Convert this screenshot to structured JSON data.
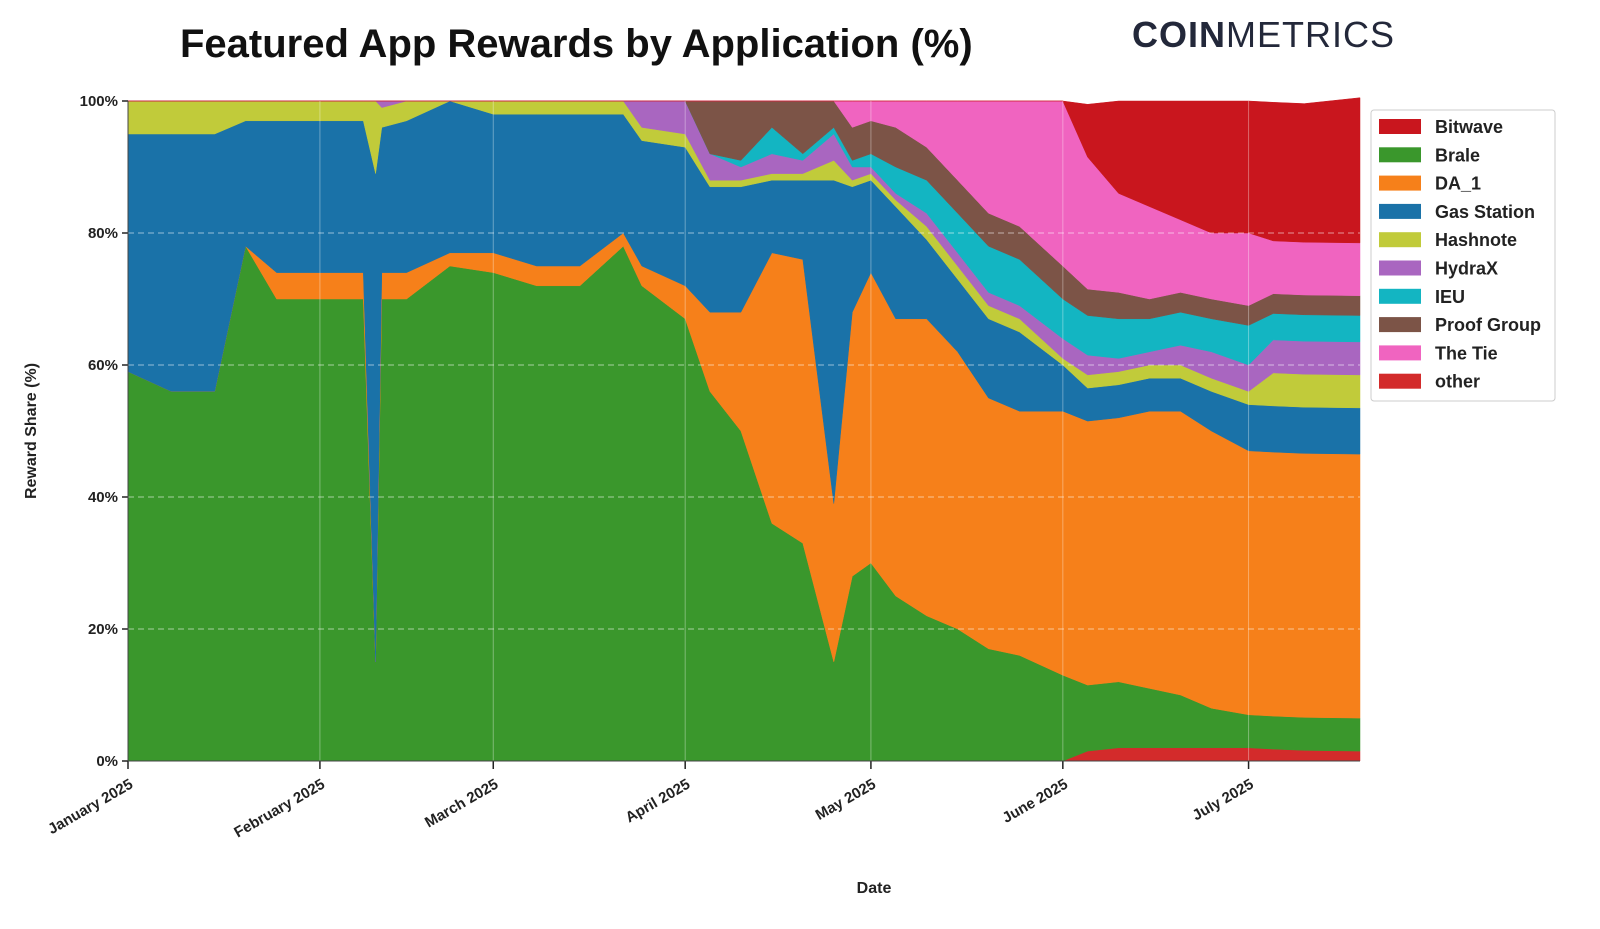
{
  "chart_data": {
    "type": "area",
    "stacked": true,
    "normalized_percent": true,
    "title": "Featured App Rewards by Application (%)",
    "xlabel": "Date",
    "ylabel": "Reward Share (%)",
    "ylim": [
      0,
      100
    ],
    "yticks": [
      "0%",
      "20%",
      "40%",
      "60%",
      "80%",
      "100%"
    ],
    "xticks": [
      "January 2025",
      "February 2025",
      "March 2025",
      "April 2025",
      "May 2025",
      "June 2025",
      "July 2025"
    ],
    "grid": true,
    "legend_position": "right",
    "x": [
      "2025-01-01",
      "2025-01-08",
      "2025-01-15",
      "2025-01-20",
      "2025-01-25",
      "2025-02-01",
      "2025-02-08",
      "2025-02-10",
      "2025-02-11",
      "2025-02-15",
      "2025-02-22",
      "2025-03-01",
      "2025-03-08",
      "2025-03-15",
      "2025-03-22",
      "2025-03-25",
      "2025-04-01",
      "2025-04-05",
      "2025-04-10",
      "2025-04-15",
      "2025-04-20",
      "2025-04-25",
      "2025-04-28",
      "2025-05-01",
      "2025-05-05",
      "2025-05-10",
      "2025-05-15",
      "2025-05-20",
      "2025-05-25",
      "2025-06-01",
      "2025-06-05",
      "2025-06-10",
      "2025-06-15",
      "2025-06-20",
      "2025-06-25",
      "2025-07-01",
      "2025-07-05",
      "2025-07-10",
      "2025-07-19"
    ],
    "series": [
      {
        "name": "other",
        "color": "#d32b2b",
        "values": [
          0,
          0,
          0,
          0,
          0,
          0,
          0,
          0,
          0,
          0,
          0,
          0,
          0,
          0,
          0,
          0,
          0,
          0,
          0,
          0,
          0,
          0,
          0,
          0,
          0,
          0,
          0,
          0,
          0,
          0,
          1.5,
          2,
          2,
          2,
          2,
          2,
          1.8,
          1.6,
          1.5
        ]
      },
      {
        "name": "Brale",
        "color": "#3a972c",
        "values": [
          59,
          56,
          56,
          78,
          70,
          70,
          70,
          15,
          70,
          70,
          75,
          74,
          72,
          72,
          78,
          72,
          67,
          56,
          50,
          36,
          33,
          15,
          28,
          30,
          25,
          22,
          20,
          17,
          16,
          13,
          10,
          10,
          9,
          8,
          6,
          5,
          5,
          5,
          5
        ]
      },
      {
        "name": "DA_1",
        "color": "#f6801a",
        "values": [
          0,
          0,
          0,
          0,
          4,
          4,
          4,
          0,
          4,
          4,
          2,
          3,
          3,
          3,
          2,
          3,
          5,
          12,
          18,
          41,
          43,
          24,
          40,
          44,
          42,
          45,
          42,
          38,
          37,
          40,
          40,
          40,
          42,
          43,
          42,
          40,
          40,
          40,
          40
        ]
      },
      {
        "name": "Gas Station",
        "color": "#1a72a8",
        "values": [
          36,
          39,
          39,
          19,
          23,
          23,
          23,
          74,
          22,
          23,
          23,
          21,
          23,
          23,
          18,
          19,
          21,
          19,
          19,
          11,
          12,
          49,
          19,
          14,
          17,
          12,
          11,
          12,
          12,
          7,
          5,
          5,
          5,
          5,
          6,
          7,
          7,
          7,
          7
        ]
      },
      {
        "name": "Hashnote",
        "color": "#c1cb3a",
        "values": [
          5,
          5,
          5,
          3,
          3,
          3,
          3,
          11,
          3,
          3,
          0,
          2,
          2,
          2,
          2,
          2,
          2,
          1,
          1,
          1,
          1,
          3,
          1,
          1,
          1,
          2,
          2,
          2,
          2,
          1,
          2,
          2,
          2,
          2,
          2,
          2,
          5,
          5,
          5
        ]
      },
      {
        "name": "HydraX",
        "color": "#a966c0",
        "values": [
          0,
          0,
          0,
          0,
          0,
          0,
          0,
          0,
          1,
          0,
          0,
          0,
          0,
          0,
          0,
          4,
          5,
          4,
          2,
          3,
          2,
          4,
          2,
          1,
          1,
          2,
          2,
          2,
          2,
          3,
          3,
          2,
          2,
          3,
          4,
          4,
          5,
          5,
          5
        ]
      },
      {
        "name": "IEU",
        "color": "#13b5c2",
        "values": [
          0,
          0,
          0,
          0,
          0,
          0,
          0,
          0,
          0,
          0,
          0,
          0,
          0,
          0,
          0,
          0,
          0,
          0,
          1,
          4,
          1,
          1,
          1,
          2,
          4,
          5,
          6,
          7,
          7,
          6,
          6,
          6,
          5,
          5,
          5,
          6,
          4,
          4,
          4
        ]
      },
      {
        "name": "Proof Group",
        "color": "#7c5447",
        "values": [
          0,
          0,
          0,
          0,
          0,
          0,
          0,
          0,
          0,
          0,
          0,
          0,
          0,
          0,
          0,
          0,
          0,
          8,
          9,
          4,
          8,
          4,
          5,
          5,
          6,
          5,
          5,
          5,
          5,
          5,
          4,
          4,
          3,
          3,
          3,
          3,
          3,
          3,
          3
        ]
      },
      {
        "name": "The Tie",
        "color": "#f064c0",
        "values": [
          0,
          0,
          0,
          0,
          0,
          0,
          0,
          0,
          0,
          0,
          0,
          0,
          0,
          0,
          0,
          0,
          0,
          0,
          0,
          0,
          0,
          0,
          4,
          3,
          4,
          7,
          12,
          17,
          19,
          25,
          20,
          15,
          14,
          11,
          10,
          11,
          8,
          8,
          8
        ]
      },
      {
        "name": "Bitwave",
        "color": "#c9161e",
        "values": [
          0,
          0,
          0,
          0,
          0,
          0,
          0,
          0,
          0,
          0,
          0,
          0,
          0,
          0,
          0,
          0,
          0,
          0,
          0,
          0,
          0,
          0,
          0,
          0,
          0,
          0,
          0,
          0,
          0,
          0,
          8,
          14,
          16,
          18,
          20,
          20,
          21,
          21,
          22
        ]
      }
    ],
    "legend": [
      "Bitwave",
      "Brale",
      "DA_1",
      "Gas Station",
      "Hashnote",
      "HydraX",
      "IEU",
      "Proof Group",
      "The Tie",
      "other"
    ]
  },
  "brand": {
    "part1": "COIN",
    "part2": "METRICS"
  }
}
